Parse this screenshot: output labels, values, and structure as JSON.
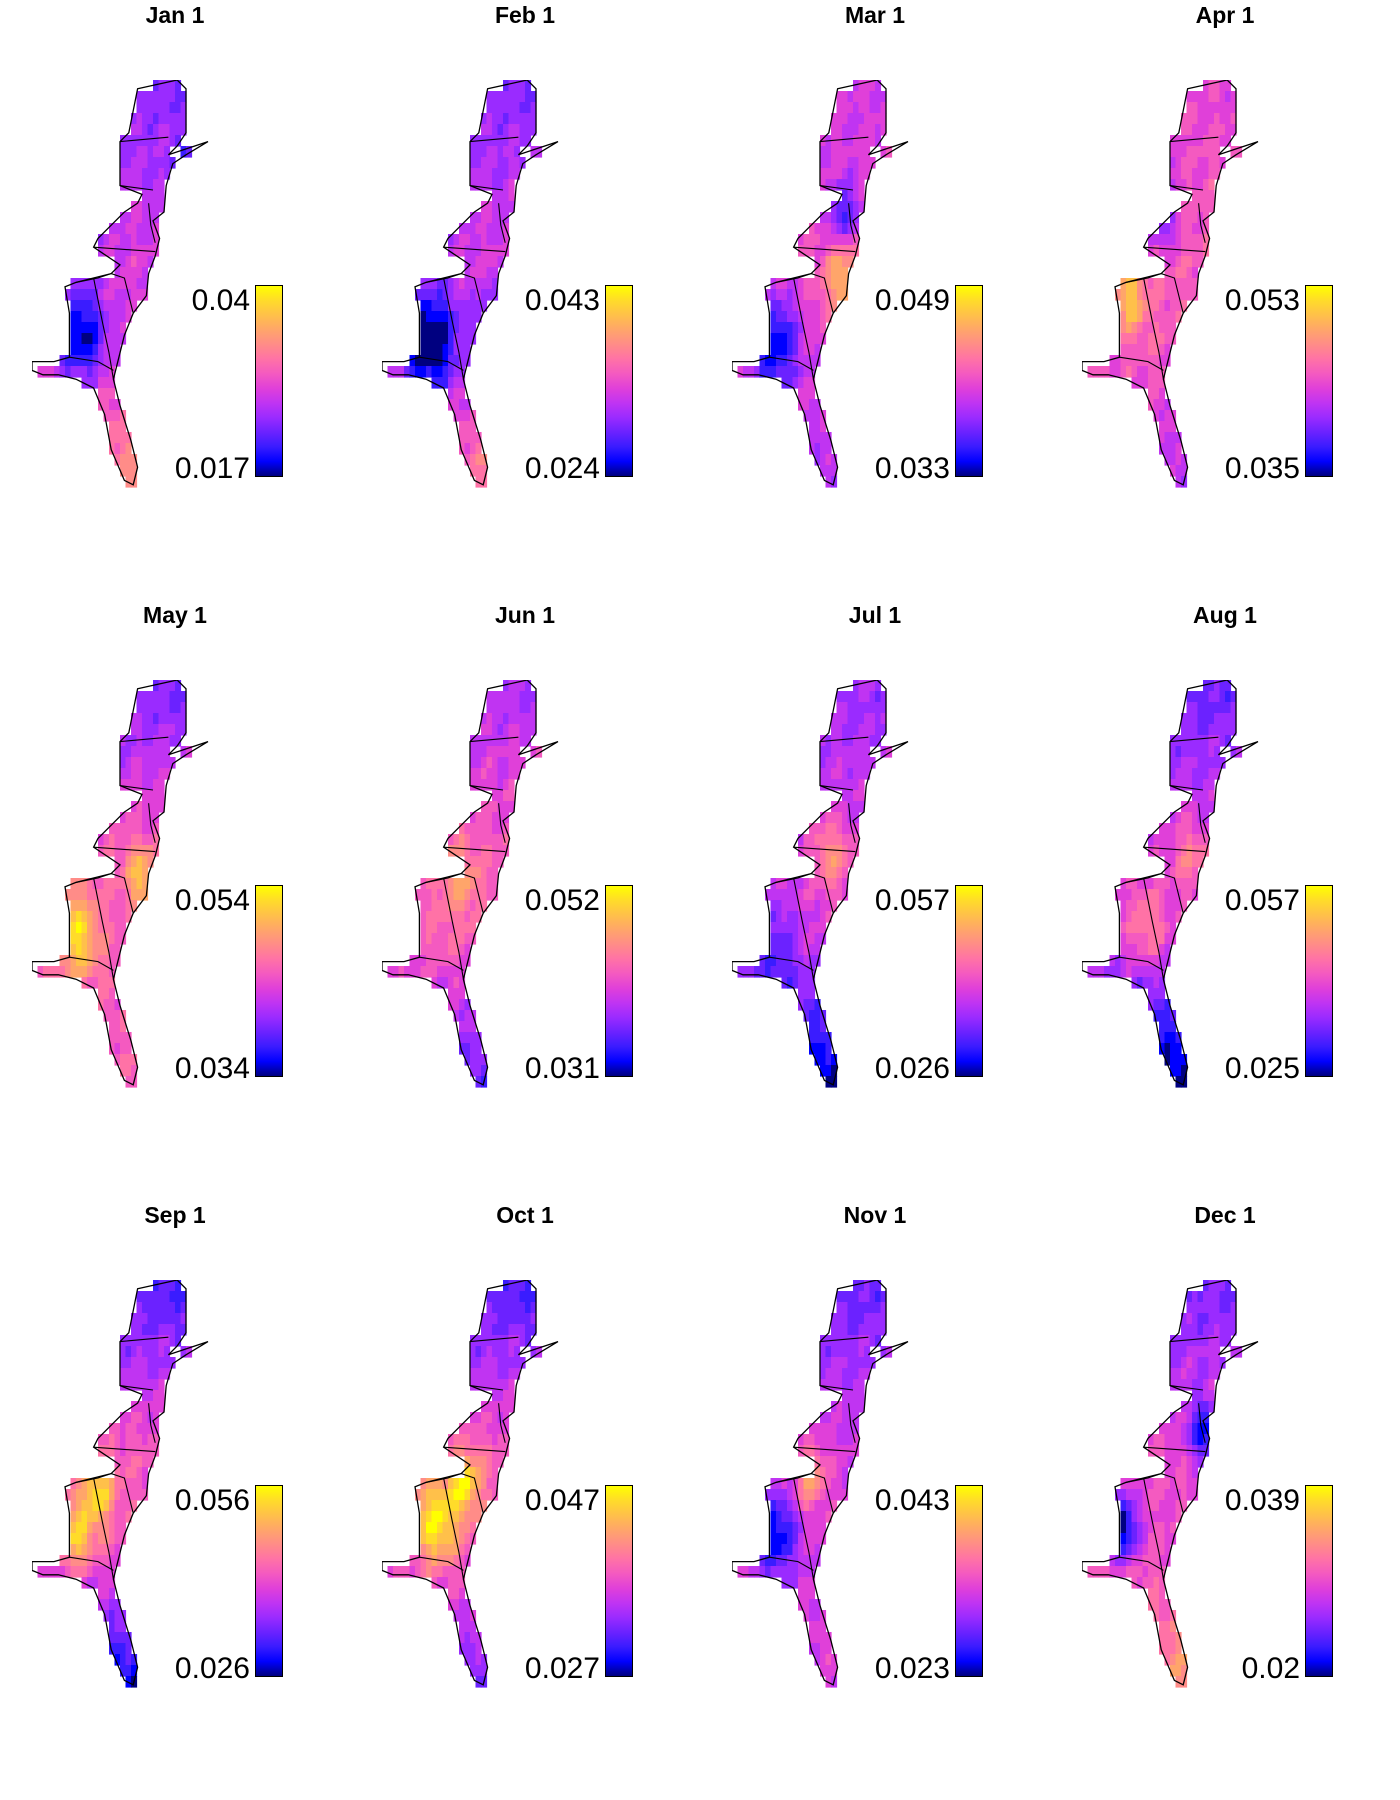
{
  "colors": [
    "#000080",
    "#0000ff",
    "#3a1cff",
    "#6b22ff",
    "#9a2bff",
    "#c034f2",
    "#e040d9",
    "#f45ac0",
    "#ff72a6",
    "#ff8c88",
    "#ffa56a",
    "#ffc04a",
    "#ffdb2a",
    "#ffff00"
  ],
  "panels": [
    {
      "title": "Jan 1",
      "max": "0.04",
      "min": "0.017",
      "base": 0.45,
      "north": -0.2,
      "south": 0.25,
      "blobs": [
        [
          0.22,
          0.3,
          -0.5,
          0.06
        ],
        [
          0.22,
          0.58,
          -0.4,
          0.08
        ],
        [
          0.62,
          0.86,
          0.5,
          0.07
        ],
        [
          0.7,
          0.22,
          -0.3,
          0.05
        ]
      ]
    },
    {
      "title": "Feb 1",
      "max": "0.043",
      "min": "0.024",
      "base": 0.45,
      "north": -0.2,
      "south": 0.15,
      "blobs": [
        [
          0.22,
          0.3,
          -0.5,
          0.06
        ],
        [
          0.22,
          0.6,
          -0.5,
          0.09
        ],
        [
          0.55,
          0.86,
          0.4,
          0.05
        ],
        [
          0.5,
          0.55,
          -0.3,
          0.05
        ]
      ]
    },
    {
      "title": "Mar 1",
      "max": "0.049",
      "min": "0.033",
      "base": 0.5,
      "north": -0.1,
      "south": -0.15,
      "blobs": [
        [
          0.2,
          0.6,
          -0.4,
          0.08
        ],
        [
          0.6,
          0.85,
          -0.5,
          0.04
        ],
        [
          0.5,
          0.3,
          -0.3,
          0.05
        ],
        [
          0.5,
          0.45,
          0.3,
          0.06
        ]
      ]
    },
    {
      "title": "Apr 1",
      "max": "0.053",
      "min": "0.035",
      "base": 0.55,
      "north": -0.1,
      "south": -0.2,
      "blobs": [
        [
          0.22,
          0.5,
          0.3,
          0.05
        ],
        [
          0.62,
          0.57,
          -0.5,
          0.04
        ],
        [
          0.62,
          0.8,
          -0.4,
          0.04
        ],
        [
          0.35,
          0.3,
          -0.3,
          0.06
        ]
      ]
    },
    {
      "title": "May 1",
      "max": "0.054",
      "min": "0.034",
      "base": 0.55,
      "north": -0.35,
      "south": 0.0,
      "blobs": [
        [
          0.2,
          0.58,
          0.35,
          0.07
        ],
        [
          0.62,
          0.56,
          -0.5,
          0.04
        ],
        [
          0.5,
          0.45,
          0.3,
          0.05
        ],
        [
          0.6,
          0.86,
          0.2,
          0.04
        ]
      ]
    },
    {
      "title": "Jun 1",
      "max": "0.052",
      "min": "0.031",
      "base": 0.55,
      "north": -0.25,
      "south": -0.35,
      "blobs": [
        [
          0.58,
          0.55,
          0.35,
          0.04
        ],
        [
          0.7,
          0.22,
          0.3,
          0.03
        ],
        [
          0.35,
          0.45,
          0.2,
          0.06
        ],
        [
          0.62,
          0.88,
          -0.3,
          0.05
        ]
      ]
    },
    {
      "title": "Jul 1",
      "max": "0.057",
      "min": "0.026",
      "base": 0.45,
      "north": -0.15,
      "south": -0.45,
      "blobs": [
        [
          0.6,
          0.55,
          0.35,
          0.04
        ],
        [
          0.45,
          0.4,
          0.25,
          0.06
        ],
        [
          0.2,
          0.6,
          -0.2,
          0.08
        ],
        [
          0.8,
          0.2,
          0.3,
          0.02
        ]
      ]
    },
    {
      "title": "Aug 1",
      "max": "0.057",
      "min": "0.025",
      "base": 0.45,
      "north": -0.25,
      "south": -0.5,
      "blobs": [
        [
          0.5,
          0.4,
          0.2,
          0.06
        ],
        [
          0.3,
          0.55,
          0.2,
          0.06
        ],
        [
          0.58,
          0.56,
          -0.3,
          0.04
        ],
        [
          0.8,
          0.2,
          0.3,
          0.02
        ]
      ]
    },
    {
      "title": "Sep 1",
      "max": "0.056",
      "min": "0.026",
      "base": 0.55,
      "north": -0.45,
      "south": -0.5,
      "blobs": [
        [
          0.3,
          0.48,
          0.35,
          0.05
        ],
        [
          0.2,
          0.58,
          0.3,
          0.06
        ],
        [
          0.55,
          0.57,
          -0.3,
          0.04
        ]
      ]
    },
    {
      "title": "Oct 1",
      "max": "0.047",
      "min": "0.027",
      "base": 0.55,
      "north": -0.45,
      "south": -0.3,
      "blobs": [
        [
          0.25,
          0.55,
          0.4,
          0.07
        ],
        [
          0.38,
          0.46,
          0.35,
          0.05
        ],
        [
          0.6,
          0.88,
          -0.3,
          0.04
        ]
      ]
    },
    {
      "title": "Nov 1",
      "max": "0.043",
      "min": "0.023",
      "base": 0.45,
      "north": -0.25,
      "south": 0.0,
      "blobs": [
        [
          0.2,
          0.58,
          -0.35,
          0.07
        ],
        [
          0.35,
          0.45,
          0.3,
          0.05
        ],
        [
          0.55,
          0.8,
          -0.2,
          0.04
        ]
      ]
    },
    {
      "title": "Dec 1",
      "max": "0.039",
      "min": "0.02",
      "base": 0.5,
      "north": -0.3,
      "south": 0.2,
      "blobs": [
        [
          0.18,
          0.56,
          -0.5,
          0.05
        ],
        [
          0.55,
          0.35,
          -0.35,
          0.05
        ],
        [
          0.6,
          0.83,
          0.35,
          0.07
        ]
      ]
    }
  ]
}
